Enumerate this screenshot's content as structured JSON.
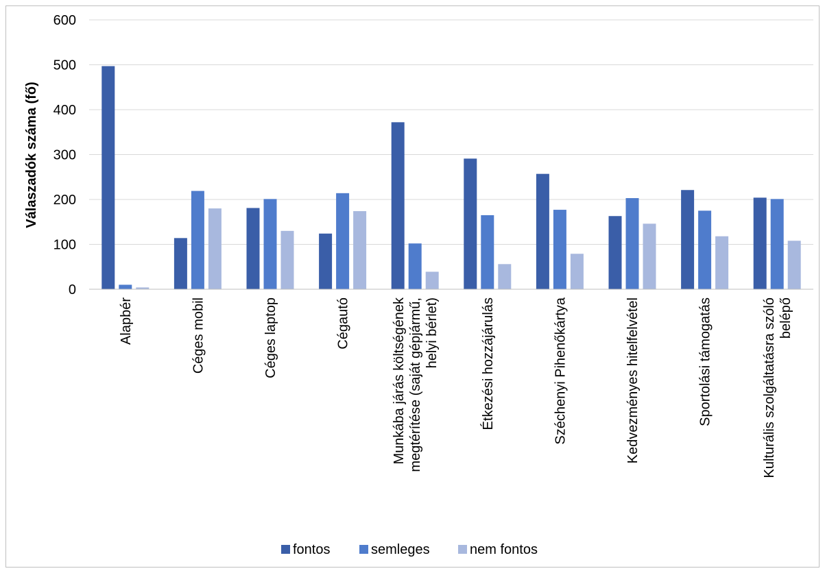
{
  "chart_data": {
    "type": "bar",
    "ylabel": "Válaszadók száma (fő)",
    "xlabel": "",
    "ylim": [
      0,
      600
    ],
    "yticks": [
      0,
      100,
      200,
      300,
      400,
      500,
      600
    ],
    "grid": true,
    "legend_position": "bottom",
    "categories": [
      [
        "Alapbér"
      ],
      [
        "Céges mobil"
      ],
      [
        "Céges laptop"
      ],
      [
        "Cégautó"
      ],
      [
        "Munkába járás költségének",
        "megtérítése (saját gépjármű,",
        "helyi bérlet)"
      ],
      [
        "Étkezési hozzájárulás"
      ],
      [
        "Széchenyi Pihenőkártya"
      ],
      [
        "Kedvezményes hitelfelvétel"
      ],
      [
        "Sportolási támogatás"
      ],
      [
        "Kulturális szolgáltatásra szóló",
        "belépő"
      ]
    ],
    "series": [
      {
        "name": "fontos",
        "color": "#3a5ea8",
        "values": [
          497,
          114,
          181,
          124,
          372,
          291,
          257,
          163,
          221,
          204
        ]
      },
      {
        "name": "semleges",
        "color": "#4f7ccc",
        "values": [
          10,
          219,
          201,
          214,
          102,
          165,
          177,
          203,
          175,
          201
        ]
      },
      {
        "name": "nem fontos",
        "color": "#a8b8de",
        "values": [
          4,
          180,
          130,
          174,
          39,
          56,
          79,
          146,
          118,
          108
        ]
      }
    ]
  }
}
